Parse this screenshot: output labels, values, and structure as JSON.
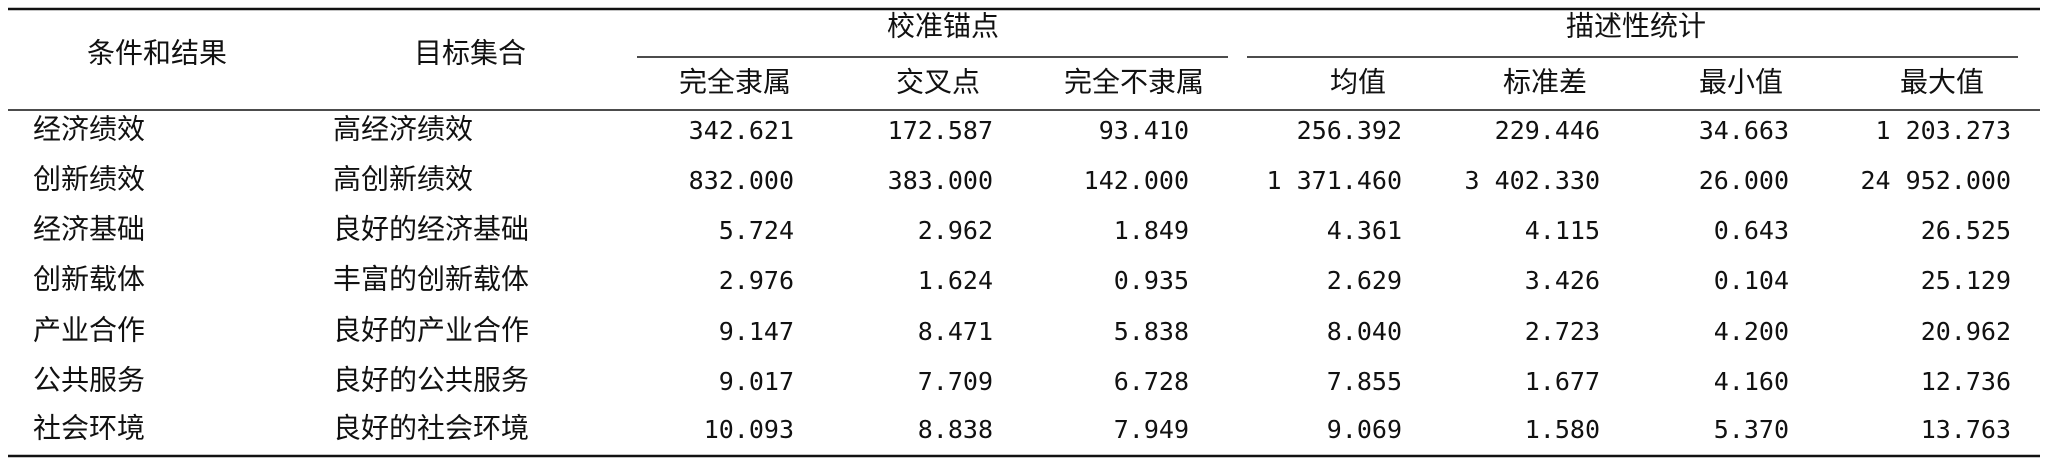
{
  "table": {
    "header": {
      "row_label": "条件和结果",
      "target": "目标集合",
      "groups": [
        {
          "title": "校准锚点",
          "columns": [
            "完全隶属",
            "交叉点",
            "完全不隶属"
          ]
        },
        {
          "title": "描述性统计",
          "columns": [
            "均值",
            "标准差",
            "最小值",
            "最大值"
          ]
        }
      ]
    },
    "rows": [
      [
        "经济绩效",
        "高经济绩效",
        "342.621",
        "172.587",
        "93.410",
        "256.392",
        "229.446",
        "34.663",
        "1 203.273"
      ],
      [
        "创新绩效",
        "高创新绩效",
        "832.000",
        "383.000",
        "142.000",
        "1 371.460",
        "3 402.330",
        "26.000",
        "24 952.000"
      ],
      [
        "经济基础",
        "良好的经济基础",
        "5.724",
        "2.962",
        "1.849",
        "4.361",
        "4.115",
        "0.643",
        "26.525"
      ],
      [
        "创新载体",
        "丰富的创新载体",
        "2.976",
        "1.624",
        "0.935",
        "2.629",
        "3.426",
        "0.104",
        "25.129"
      ],
      [
        "产业合作",
        "良好的产业合作",
        "9.147",
        "8.471",
        "5.838",
        "8.040",
        "2.723",
        "4.200",
        "20.962"
      ],
      [
        "公共服务",
        "良好的公共服务",
        "9.017",
        "7.709",
        "6.728",
        "7.855",
        "1.677",
        "4.160",
        "12.736"
      ],
      [
        "社会环境",
        "良好的社会环境",
        "10.093",
        "8.838",
        "7.949",
        "9.069",
        "1.580",
        "5.370",
        "13.763"
      ]
    ]
  }
}
